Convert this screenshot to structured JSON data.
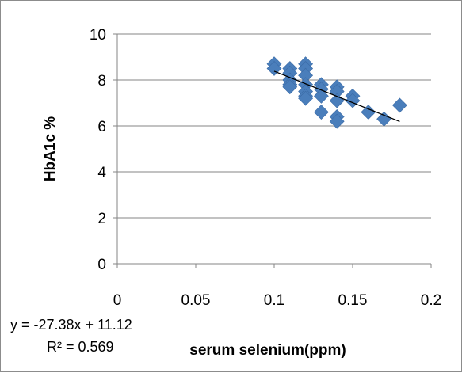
{
  "chart_data": {
    "type": "scatter",
    "xlabel": "serum selenium(ppm)",
    "ylabel": "HbA1c %",
    "xlim": [
      0,
      0.2
    ],
    "ylim": [
      0,
      10
    ],
    "x_ticks": [
      "0",
      "0.05",
      "0.1",
      "0.15",
      "0.2"
    ],
    "y_ticks": [
      "0",
      "2",
      "4",
      "6",
      "8",
      "10"
    ],
    "grid": "horizontal",
    "marker": "diamond",
    "marker_color": "#4a7ebb",
    "trendline_color": "#000000",
    "points": [
      {
        "x": 0.1,
        "y": 8.7
      },
      {
        "x": 0.1,
        "y": 8.5
      },
      {
        "x": 0.11,
        "y": 8.5
      },
      {
        "x": 0.11,
        "y": 8.3
      },
      {
        "x": 0.11,
        "y": 8.0
      },
      {
        "x": 0.11,
        "y": 7.8
      },
      {
        "x": 0.11,
        "y": 7.7
      },
      {
        "x": 0.12,
        "y": 8.7
      },
      {
        "x": 0.12,
        "y": 8.5
      },
      {
        "x": 0.12,
        "y": 8.2
      },
      {
        "x": 0.12,
        "y": 7.8
      },
      {
        "x": 0.12,
        "y": 7.5
      },
      {
        "x": 0.12,
        "y": 7.3
      },
      {
        "x": 0.12,
        "y": 7.2
      },
      {
        "x": 0.13,
        "y": 7.8
      },
      {
        "x": 0.13,
        "y": 7.6
      },
      {
        "x": 0.13,
        "y": 7.3
      },
      {
        "x": 0.13,
        "y": 6.6
      },
      {
        "x": 0.14,
        "y": 7.7
      },
      {
        "x": 0.14,
        "y": 7.5
      },
      {
        "x": 0.14,
        "y": 7.1
      },
      {
        "x": 0.14,
        "y": 6.4
      },
      {
        "x": 0.14,
        "y": 6.2
      },
      {
        "x": 0.15,
        "y": 7.3
      },
      {
        "x": 0.15,
        "y": 7.1
      },
      {
        "x": 0.16,
        "y": 6.6
      },
      {
        "x": 0.17,
        "y": 6.3
      },
      {
        "x": 0.18,
        "y": 6.9
      }
    ],
    "trendline": {
      "slope": -27.38,
      "intercept": 11.12,
      "x_range": [
        0.1,
        0.18
      ]
    },
    "equation_label": "y = -27.38x + 11.12",
    "r2_label": "R² = 0.569"
  }
}
